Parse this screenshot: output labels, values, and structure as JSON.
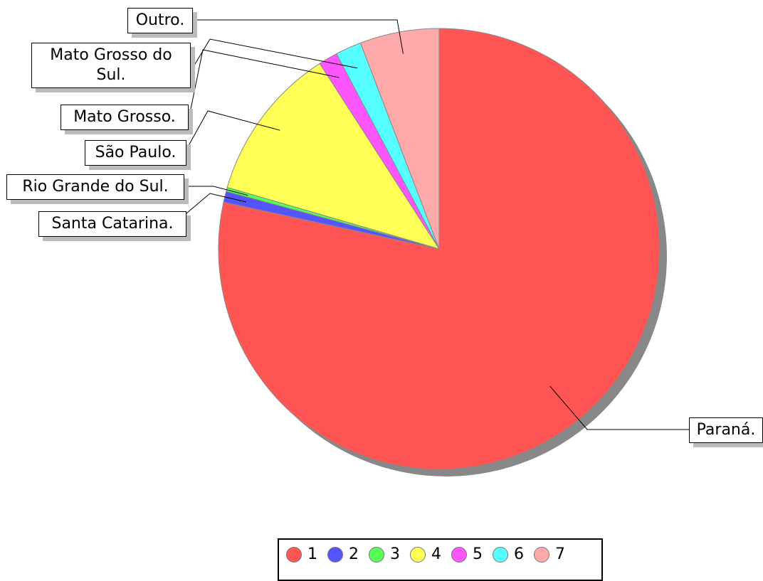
{
  "chart_data": {
    "type": "pie",
    "categories": [
      "Paraná.",
      "Santa Catarina.",
      "Rio Grande do Sul.",
      "São Paulo.",
      "Mato Grosso.",
      "Mato Grosso do Sul.",
      "Outro."
    ],
    "values": [
      78.4,
      0.8,
      0.3,
      11.4,
      1.4,
      1.9,
      5.8
    ],
    "colors": [
      "#ff5555",
      "#5555ff",
      "#55ff55",
      "#ffff55",
      "#ff55ff",
      "#55ffff",
      "#ffaaaa"
    ],
    "legend": [
      "1",
      "2",
      "3",
      "4",
      "5",
      "6",
      "7"
    ]
  }
}
